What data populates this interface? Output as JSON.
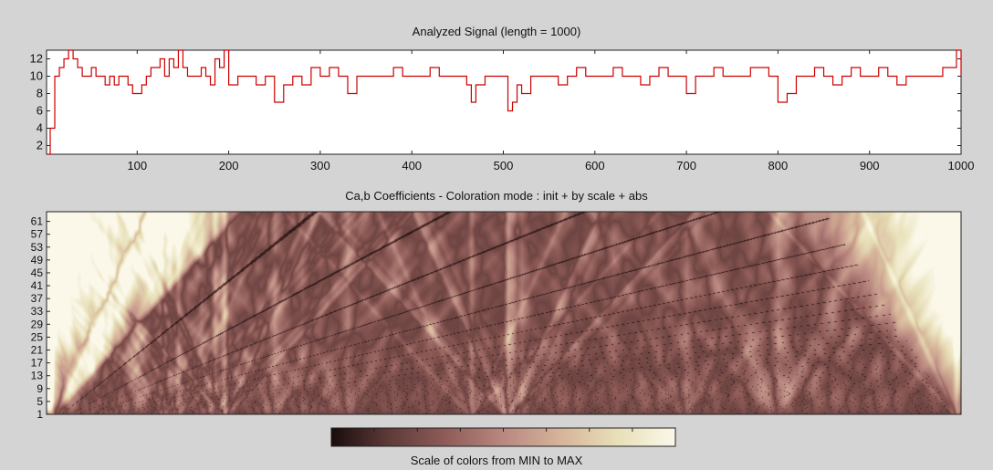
{
  "window": {
    "background": "#d4d4d4"
  },
  "signal_panel": {
    "title": "Analyzed Signal  (length = 1000)",
    "line_color": "#cc0000"
  },
  "coef_panel": {
    "title": "Ca,b Coefficients  - Coloration mode : init + by scale + abs",
    "colormap": [
      "#1a0c0c",
      "#5e3a38",
      "#8f5c58",
      "#b98880",
      "#d6b49a",
      "#e8e0b8",
      "#fbf8ea"
    ]
  },
  "colorbar": {
    "label": "Scale of colors from MIN to MAX"
  },
  "chart_data": [
    {
      "type": "line",
      "title": "Analyzed Signal  (length = 1000)",
      "xlim": [
        1,
        1000
      ],
      "ylim": [
        1,
        13
      ],
      "xticks": [
        100,
        200,
        300,
        400,
        500,
        600,
        700,
        800,
        900,
        1000
      ],
      "yticks": [
        2,
        4,
        6,
        8,
        10,
        12
      ],
      "series": [
        {
          "x": [
            1,
            5,
            10,
            15,
            20,
            25,
            30,
            35,
            40,
            45,
            50,
            55,
            60,
            65,
            70,
            75,
            80,
            85,
            90,
            95,
            100,
            105,
            110,
            115,
            120,
            125,
            130,
            135,
            140,
            145,
            150,
            155,
            160,
            165,
            170,
            175,
            180,
            185,
            190,
            195,
            200,
            210,
            220,
            230,
            240,
            250,
            260,
            270,
            280,
            290,
            300,
            310,
            320,
            330,
            340,
            350,
            360,
            370,
            380,
            390,
            400,
            410,
            420,
            430,
            440,
            450,
            460,
            465,
            470,
            480,
            490,
            500,
            505,
            510,
            515,
            520,
            530,
            540,
            550,
            560,
            570,
            580,
            590,
            600,
            610,
            620,
            630,
            640,
            650,
            660,
            670,
            680,
            690,
            700,
            710,
            720,
            730,
            740,
            750,
            760,
            770,
            780,
            790,
            800,
            810,
            820,
            830,
            840,
            850,
            860,
            870,
            880,
            890,
            900,
            910,
            920,
            930,
            940,
            950,
            960,
            970,
            980,
            990,
            995,
            1000
          ],
          "values": [
            1,
            4,
            10,
            11,
            12,
            13,
            12,
            11,
            10,
            10,
            11,
            10,
            10,
            9,
            10,
            9,
            10,
            10,
            9,
            8,
            8,
            9,
            10,
            11,
            11,
            12,
            10,
            12,
            11,
            13,
            11,
            10,
            10,
            10,
            11,
            10,
            9,
            12,
            11,
            13,
            9,
            10,
            10,
            9,
            10,
            7,
            9,
            10,
            9,
            11,
            10,
            11,
            10,
            8,
            10,
            10,
            10,
            10,
            11,
            10,
            10,
            10,
            11,
            10,
            10,
            10,
            9,
            7,
            9,
            10,
            10,
            10,
            6,
            7,
            9,
            8,
            10,
            10,
            10,
            9,
            10,
            11,
            10,
            10,
            10,
            11,
            10,
            10,
            9,
            10,
            11,
            10,
            10,
            8,
            10,
            10,
            11,
            10,
            10,
            10,
            11,
            11,
            10,
            7,
            8,
            10,
            10,
            11,
            10,
            9,
            10,
            11,
            10,
            10,
            11,
            10,
            9,
            10,
            10,
            10,
            10,
            11,
            11,
            13,
            10
          ]
        }
      ]
    },
    {
      "type": "heatmap",
      "title": "Ca,b Coefficients  - Coloration mode : init + by scale + abs",
      "xlim": [
        1,
        1000
      ],
      "ylim": [
        1,
        64
      ],
      "yticks": [
        1,
        5,
        9,
        13,
        17,
        21,
        25,
        29,
        33,
        37,
        41,
        45,
        49,
        53,
        57,
        61
      ],
      "colorbar_label": "Scale of colors from MIN to MAX"
    }
  ]
}
